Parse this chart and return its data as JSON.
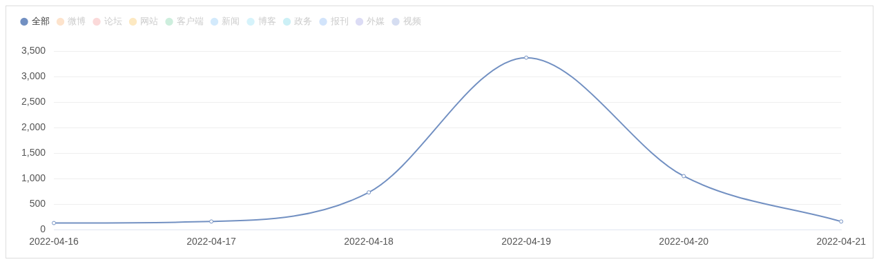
{
  "chart_data": {
    "type": "line",
    "categories": [
      "2022-04-16",
      "2022-04-17",
      "2022-04-18",
      "2022-04-19",
      "2022-04-20",
      "2022-04-21"
    ],
    "series": [
      {
        "name": "全部",
        "color": "#7290c2",
        "values": [
          130,
          160,
          730,
          3370,
          1050,
          160
        ]
      },
      {
        "name": "微博",
        "color": "#fde3cc",
        "values": [
          null,
          null,
          null,
          null,
          null,
          null
        ]
      },
      {
        "name": "论坛",
        "color": "#fbd9d9",
        "values": [
          null,
          null,
          null,
          null,
          null,
          null
        ]
      },
      {
        "name": "网站",
        "color": "#fde9c2",
        "values": [
          null,
          null,
          null,
          null,
          null,
          null
        ]
      },
      {
        "name": "客户端",
        "color": "#cdeedd",
        "values": [
          null,
          null,
          null,
          null,
          null,
          null
        ]
      },
      {
        "name": "新闻",
        "color": "#d3eafc",
        "values": [
          null,
          null,
          null,
          null,
          null,
          null
        ]
      },
      {
        "name": "博客",
        "color": "#d6f3fb",
        "values": [
          null,
          null,
          null,
          null,
          null,
          null
        ]
      },
      {
        "name": "政务",
        "color": "#ccf0f6",
        "values": [
          null,
          null,
          null,
          null,
          null,
          null
        ]
      },
      {
        "name": "报刊",
        "color": "#d2e4fb",
        "values": [
          null,
          null,
          null,
          null,
          null,
          null
        ]
      },
      {
        "name": "外媒",
        "color": "#dcdcf5",
        "values": [
          null,
          null,
          null,
          null,
          null,
          null
        ]
      },
      {
        "name": "视频",
        "color": "#d5ddf1",
        "values": [
          null,
          null,
          null,
          null,
          null,
          null
        ]
      }
    ],
    "ylim": [
      0,
      3500
    ],
    "yticks": [
      0,
      {
        "value": 500,
        "label": "500"
      },
      {
        "value": 1000,
        "label": "1,000"
      },
      {
        "value": 1500,
        "label": "1,500"
      },
      {
        "value": 2000,
        "label": "2,000"
      },
      {
        "value": 2500,
        "label": "2,500"
      },
      {
        "value": 3000,
        "label": "3,000"
      },
      {
        "value": 3500,
        "label": "3,500"
      }
    ],
    "grid": "y",
    "legend": "top left",
    "marker": "circle",
    "line_style": "solid"
  }
}
